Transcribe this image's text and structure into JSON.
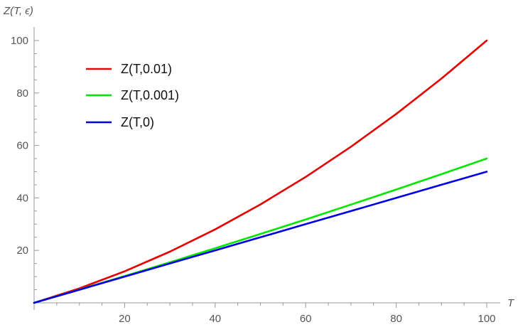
{
  "chart_data": {
    "type": "line",
    "xlabel": "T",
    "ylabel": "Z(T, ϵ)",
    "xlim": [
      0,
      100
    ],
    "ylim": [
      0,
      100
    ],
    "xticks": [
      20,
      40,
      60,
      80,
      100
    ],
    "yticks": [
      20,
      40,
      60,
      80,
      100
    ],
    "x_minor_step": 5,
    "y_minor_step": 5,
    "grid": false,
    "legend_position": "top-left",
    "x": [
      0,
      10,
      20,
      30,
      40,
      50,
      60,
      70,
      80,
      90,
      100
    ],
    "series": [
      {
        "name": "Z(T,0.01)",
        "color": "#e60000",
        "values": [
          0,
          5.5,
          12,
          19.5,
          28,
          37.5,
          48,
          59.5,
          72,
          85.5,
          100
        ]
      },
      {
        "name": "Z(T,0.001)",
        "color": "#00e600",
        "values": [
          0,
          5.05,
          10.2,
          15.45,
          20.8,
          26.25,
          31.8,
          37.45,
          43.2,
          49.05,
          55
        ]
      },
      {
        "name": "Z(T,0)",
        "color": "#0000e6",
        "values": [
          0,
          5,
          10,
          15,
          20,
          25,
          30,
          35,
          40,
          45,
          50
        ]
      }
    ]
  }
}
